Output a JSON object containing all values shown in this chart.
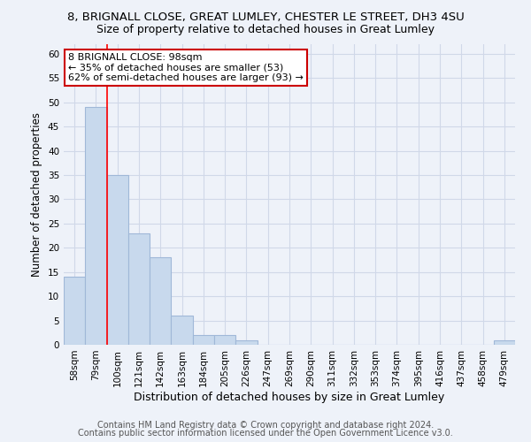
{
  "title": "8, BRIGNALL CLOSE, GREAT LUMLEY, CHESTER LE STREET, DH3 4SU",
  "subtitle": "Size of property relative to detached houses in Great Lumley",
  "xlabel": "Distribution of detached houses by size in Great Lumley",
  "ylabel": "Number of detached properties",
  "categories": [
    "58sqm",
    "79sqm",
    "100sqm",
    "121sqm",
    "142sqm",
    "163sqm",
    "184sqm",
    "205sqm",
    "226sqm",
    "247sqm",
    "269sqm",
    "290sqm",
    "311sqm",
    "332sqm",
    "353sqm",
    "374sqm",
    "395sqm",
    "416sqm",
    "437sqm",
    "458sqm",
    "479sqm"
  ],
  "values": [
    14,
    49,
    35,
    23,
    18,
    6,
    2,
    2,
    1,
    0,
    0,
    0,
    0,
    0,
    0,
    0,
    0,
    0,
    0,
    0,
    1
  ],
  "bar_color": "#c8d9ed",
  "bar_edge_color": "#a0b8d8",
  "bar_linewidth": 0.8,
  "red_line_x": 1.5,
  "ylim": [
    0,
    62
  ],
  "yticks": [
    0,
    5,
    10,
    15,
    20,
    25,
    30,
    35,
    40,
    45,
    50,
    55,
    60
  ],
  "grid_color": "#d0d8e8",
  "background_color": "#eef2f9",
  "annotation_box_text": "8 BRIGNALL CLOSE: 98sqm\n← 35% of detached houses are smaller (53)\n62% of semi-detached houses are larger (93) →",
  "annotation_box_color": "#ffffff",
  "annotation_box_edge_color": "#cc0000",
  "footer_line1": "Contains HM Land Registry data © Crown copyright and database right 2024.",
  "footer_line2": "Contains public sector information licensed under the Open Government Licence v3.0.",
  "title_fontsize": 9.5,
  "subtitle_fontsize": 9,
  "xlabel_fontsize": 9,
  "ylabel_fontsize": 8.5,
  "tick_fontsize": 7.5,
  "annotation_fontsize": 8,
  "footer_fontsize": 7
}
